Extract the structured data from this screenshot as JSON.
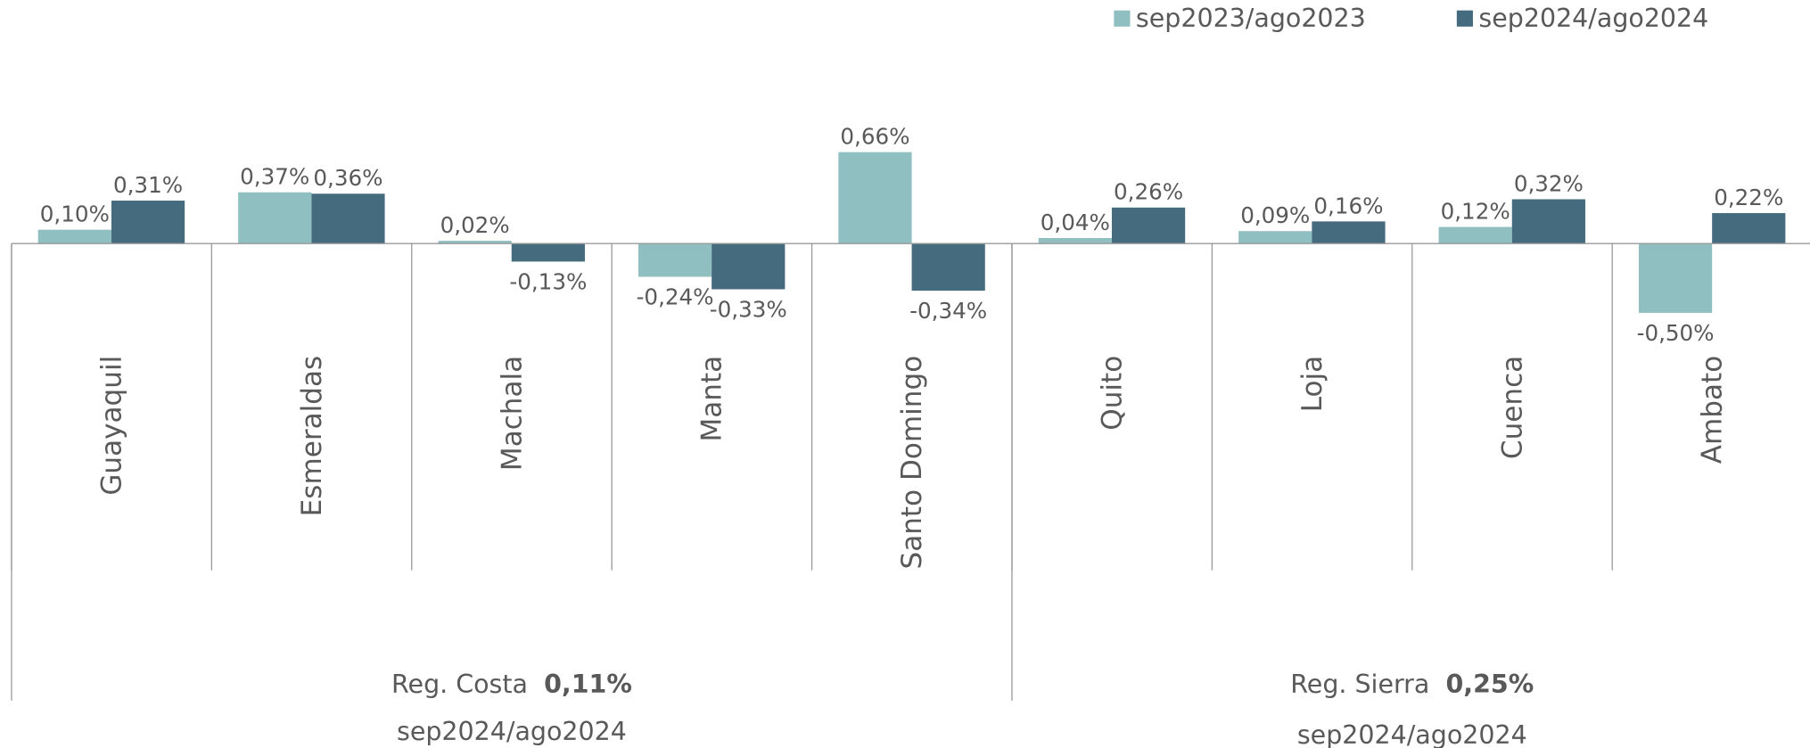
{
  "chart_data": {
    "type": "bar",
    "categories": [
      "Guayaquil",
      "Esmeraldas",
      "Machala",
      "Manta",
      "Santo Domingo",
      "Quito",
      "Loja",
      "Cuenca",
      "Ambato"
    ],
    "series": [
      {
        "name": "sep2023/ago2023",
        "color": "#8fbfc1",
        "values": [
          0.1,
          0.37,
          0.02,
          -0.24,
          0.66,
          0.04,
          0.09,
          0.12,
          -0.5
        ],
        "value_labels": [
          "0,10%",
          "0,37%",
          "0,02%",
          "-0,24%",
          "0,66%",
          "0,04%",
          "0,09%",
          "0,12%",
          "-0,50%"
        ]
      },
      {
        "name": "sep2024/ago2024",
        "color": "#456b7e",
        "values": [
          0.31,
          0.36,
          -0.13,
          -0.33,
          -0.34,
          0.26,
          0.16,
          0.32,
          0.22
        ],
        "value_labels": [
          "0,31%",
          "0,36%",
          "-0,13%",
          "-0,33%",
          "-0,34%",
          "0,26%",
          "0,16%",
          "0,32%",
          "0,22%"
        ]
      }
    ],
    "groups": [
      {
        "name": "Reg. Costa",
        "value": 0.11,
        "value_label": "0,11%",
        "period": "sep2024/ago2024",
        "size": 5
      },
      {
        "name": "Reg. Sierra",
        "value": 0.25,
        "value_label": "0,25%",
        "period": "sep2024/ago2024",
        "size": 4
      }
    ],
    "legend": "top-right"
  }
}
